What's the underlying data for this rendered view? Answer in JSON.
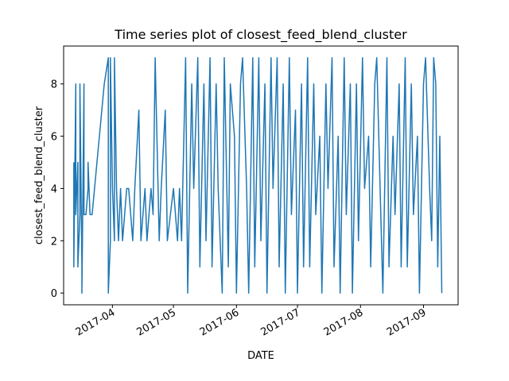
{
  "chart_data": {
    "type": "line",
    "title": "Time series plot of closest_feed_blend_cluster",
    "xlabel": "DATE",
    "ylabel": "closest_feed_blend_cluster",
    "series_color": "#1f77b4",
    "xlim": [
      "2017-03-08",
      "2017-09-18"
    ],
    "ylim": [
      -0.45,
      9.45
    ],
    "x_ticks": [
      {
        "date": "2017-04-01",
        "label": "2017-04"
      },
      {
        "date": "2017-05-01",
        "label": "2017-05"
      },
      {
        "date": "2017-06-01",
        "label": "2017-06"
      },
      {
        "date": "2017-07-01",
        "label": "2017-07"
      },
      {
        "date": "2017-08-01",
        "label": "2017-08"
      },
      {
        "date": "2017-09-01",
        "label": "2017-09"
      }
    ],
    "y_ticks": [
      0,
      2,
      4,
      6,
      8
    ],
    "grid": false,
    "legend": "none",
    "series": [
      {
        "x": [
          "2017-03-13",
          "2017-03-13",
          "2017-03-14",
          "2017-03-14",
          "2017-03-15",
          "2017-03-15",
          "2017-03-16",
          "2017-03-16",
          "2017-03-17",
          "2017-03-17",
          "2017-03-18",
          "2017-03-18",
          "2017-03-19",
          "2017-03-19",
          "2017-03-20",
          "2017-03-20",
          "2017-03-21",
          "2017-03-22",
          "2017-03-28",
          "2017-03-30",
          "2017-03-30",
          "2017-03-31",
          "2017-03-31",
          "2017-04-01",
          "2017-04-02",
          "2017-04-02",
          "2017-04-03",
          "2017-04-04",
          "2017-04-05",
          "2017-04-06",
          "2017-04-08",
          "2017-04-09",
          "2017-04-11",
          "2017-04-12",
          "2017-04-14",
          "2017-04-15",
          "2017-04-17",
          "2017-04-18",
          "2017-04-20",
          "2017-04-21",
          "2017-04-22",
          "2017-04-24",
          "2017-04-25",
          "2017-04-27",
          "2017-04-28",
          "2017-05-01",
          "2017-05-03",
          "2017-05-04",
          "2017-05-05",
          "2017-05-07",
          "2017-05-08",
          "2017-05-10",
          "2017-05-11",
          "2017-05-13",
          "2017-05-14",
          "2017-05-16",
          "2017-05-17",
          "2017-05-19",
          "2017-05-20",
          "2017-05-22",
          "2017-05-23",
          "2017-05-25",
          "2017-05-26",
          "2017-05-28",
          "2017-05-29",
          "2017-05-31",
          "2017-06-01",
          "2017-06-03",
          "2017-06-04",
          "2017-06-06",
          "2017-06-07",
          "2017-06-09",
          "2017-06-10",
          "2017-06-12",
          "2017-06-13",
          "2017-06-15",
          "2017-06-16",
          "2017-06-18",
          "2017-06-19",
          "2017-06-21",
          "2017-06-22",
          "2017-06-24",
          "2017-06-25",
          "2017-06-27",
          "2017-06-28",
          "2017-06-30",
          "2017-07-01",
          "2017-07-03",
          "2017-07-04",
          "2017-07-06",
          "2017-07-07",
          "2017-07-09",
          "2017-07-10",
          "2017-07-12",
          "2017-07-13",
          "2017-07-15",
          "2017-07-16",
          "2017-07-18",
          "2017-07-19",
          "2017-07-21",
          "2017-07-22",
          "2017-07-24",
          "2017-07-25",
          "2017-07-27",
          "2017-07-28",
          "2017-07-30",
          "2017-07-31",
          "2017-08-02",
          "2017-08-03",
          "2017-08-05",
          "2017-08-06",
          "2017-08-08",
          "2017-08-09",
          "2017-08-11",
          "2017-08-12",
          "2017-08-14",
          "2017-08-15",
          "2017-08-17",
          "2017-08-18",
          "2017-08-20",
          "2017-08-21",
          "2017-08-23",
          "2017-08-24",
          "2017-08-26",
          "2017-08-27",
          "2017-08-29",
          "2017-08-30",
          "2017-09-01",
          "2017-09-02",
          "2017-09-04",
          "2017-09-05",
          "2017-09-06",
          "2017-09-07",
          "2017-09-08",
          "2017-09-09",
          "2017-09-10"
        ],
        "values": [
          5,
          1,
          8,
          3,
          5,
          1,
          3,
          8,
          1,
          0,
          8,
          3,
          3,
          3,
          4,
          5,
          3,
          3,
          8,
          9,
          0,
          2,
          9,
          4,
          2,
          9,
          4,
          2,
          4,
          2,
          4,
          4,
          2,
          4,
          7,
          2,
          4,
          2,
          4,
          3,
          9,
          2,
          4,
          7,
          2,
          4,
          2,
          4,
          2,
          9,
          0,
          8,
          4,
          9,
          1,
          8,
          2,
          9,
          1,
          8,
          4,
          0,
          9,
          1,
          8,
          6,
          0,
          8,
          9,
          4,
          0,
          9,
          1,
          9,
          2,
          8,
          0,
          9,
          4,
          9,
          1,
          8,
          0,
          9,
          3,
          7,
          0,
          8,
          1,
          9,
          1,
          8,
          3,
          6,
          0,
          8,
          4,
          9,
          1,
          6,
          0,
          9,
          3,
          8,
          0,
          8,
          2,
          9,
          4,
          6,
          1,
          8,
          9,
          3,
          0,
          9,
          1,
          6,
          3,
          8,
          1,
          9,
          1,
          8,
          3,
          6,
          0,
          8,
          9,
          4,
          2,
          9,
          8,
          1,
          6,
          0
        ]
      }
    ]
  }
}
